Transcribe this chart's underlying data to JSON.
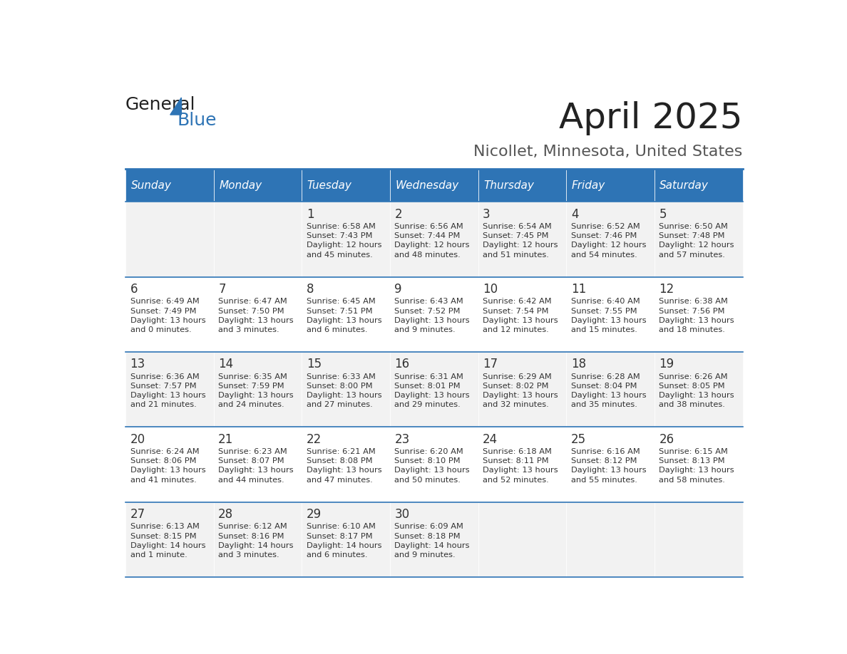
{
  "title": "April 2025",
  "subtitle": "Nicollet, Minnesota, United States",
  "header_bg": "#2e74b5",
  "header_text_color": "#ffffff",
  "cell_bg_odd": "#f2f2f2",
  "cell_bg_even": "#ffffff",
  "day_text_color": "#333333",
  "info_text_color": "#333333",
  "separator_color": "#2e74b5",
  "days_of_week": [
    "Sunday",
    "Monday",
    "Tuesday",
    "Wednesday",
    "Thursday",
    "Friday",
    "Saturday"
  ],
  "calendar": [
    [
      {
        "day": "",
        "info": ""
      },
      {
        "day": "",
        "info": ""
      },
      {
        "day": "1",
        "info": "Sunrise: 6:58 AM\nSunset: 7:43 PM\nDaylight: 12 hours\nand 45 minutes."
      },
      {
        "day": "2",
        "info": "Sunrise: 6:56 AM\nSunset: 7:44 PM\nDaylight: 12 hours\nand 48 minutes."
      },
      {
        "day": "3",
        "info": "Sunrise: 6:54 AM\nSunset: 7:45 PM\nDaylight: 12 hours\nand 51 minutes."
      },
      {
        "day": "4",
        "info": "Sunrise: 6:52 AM\nSunset: 7:46 PM\nDaylight: 12 hours\nand 54 minutes."
      },
      {
        "day": "5",
        "info": "Sunrise: 6:50 AM\nSunset: 7:48 PM\nDaylight: 12 hours\nand 57 minutes."
      }
    ],
    [
      {
        "day": "6",
        "info": "Sunrise: 6:49 AM\nSunset: 7:49 PM\nDaylight: 13 hours\nand 0 minutes."
      },
      {
        "day": "7",
        "info": "Sunrise: 6:47 AM\nSunset: 7:50 PM\nDaylight: 13 hours\nand 3 minutes."
      },
      {
        "day": "8",
        "info": "Sunrise: 6:45 AM\nSunset: 7:51 PM\nDaylight: 13 hours\nand 6 minutes."
      },
      {
        "day": "9",
        "info": "Sunrise: 6:43 AM\nSunset: 7:52 PM\nDaylight: 13 hours\nand 9 minutes."
      },
      {
        "day": "10",
        "info": "Sunrise: 6:42 AM\nSunset: 7:54 PM\nDaylight: 13 hours\nand 12 minutes."
      },
      {
        "day": "11",
        "info": "Sunrise: 6:40 AM\nSunset: 7:55 PM\nDaylight: 13 hours\nand 15 minutes."
      },
      {
        "day": "12",
        "info": "Sunrise: 6:38 AM\nSunset: 7:56 PM\nDaylight: 13 hours\nand 18 minutes."
      }
    ],
    [
      {
        "day": "13",
        "info": "Sunrise: 6:36 AM\nSunset: 7:57 PM\nDaylight: 13 hours\nand 21 minutes."
      },
      {
        "day": "14",
        "info": "Sunrise: 6:35 AM\nSunset: 7:59 PM\nDaylight: 13 hours\nand 24 minutes."
      },
      {
        "day": "15",
        "info": "Sunrise: 6:33 AM\nSunset: 8:00 PM\nDaylight: 13 hours\nand 27 minutes."
      },
      {
        "day": "16",
        "info": "Sunrise: 6:31 AM\nSunset: 8:01 PM\nDaylight: 13 hours\nand 29 minutes."
      },
      {
        "day": "17",
        "info": "Sunrise: 6:29 AM\nSunset: 8:02 PM\nDaylight: 13 hours\nand 32 minutes."
      },
      {
        "day": "18",
        "info": "Sunrise: 6:28 AM\nSunset: 8:04 PM\nDaylight: 13 hours\nand 35 minutes."
      },
      {
        "day": "19",
        "info": "Sunrise: 6:26 AM\nSunset: 8:05 PM\nDaylight: 13 hours\nand 38 minutes."
      }
    ],
    [
      {
        "day": "20",
        "info": "Sunrise: 6:24 AM\nSunset: 8:06 PM\nDaylight: 13 hours\nand 41 minutes."
      },
      {
        "day": "21",
        "info": "Sunrise: 6:23 AM\nSunset: 8:07 PM\nDaylight: 13 hours\nand 44 minutes."
      },
      {
        "day": "22",
        "info": "Sunrise: 6:21 AM\nSunset: 8:08 PM\nDaylight: 13 hours\nand 47 minutes."
      },
      {
        "day": "23",
        "info": "Sunrise: 6:20 AM\nSunset: 8:10 PM\nDaylight: 13 hours\nand 50 minutes."
      },
      {
        "day": "24",
        "info": "Sunrise: 6:18 AM\nSunset: 8:11 PM\nDaylight: 13 hours\nand 52 minutes."
      },
      {
        "day": "25",
        "info": "Sunrise: 6:16 AM\nSunset: 8:12 PM\nDaylight: 13 hours\nand 55 minutes."
      },
      {
        "day": "26",
        "info": "Sunrise: 6:15 AM\nSunset: 8:13 PM\nDaylight: 13 hours\nand 58 minutes."
      }
    ],
    [
      {
        "day": "27",
        "info": "Sunrise: 6:13 AM\nSunset: 8:15 PM\nDaylight: 14 hours\nand 1 minute."
      },
      {
        "day": "28",
        "info": "Sunrise: 6:12 AM\nSunset: 8:16 PM\nDaylight: 14 hours\nand 3 minutes."
      },
      {
        "day": "29",
        "info": "Sunrise: 6:10 AM\nSunset: 8:17 PM\nDaylight: 14 hours\nand 6 minutes."
      },
      {
        "day": "30",
        "info": "Sunrise: 6:09 AM\nSunset: 8:18 PM\nDaylight: 14 hours\nand 9 minutes."
      },
      {
        "day": "",
        "info": ""
      },
      {
        "day": "",
        "info": ""
      },
      {
        "day": "",
        "info": ""
      }
    ]
  ],
  "logo_text_general": "General",
  "logo_text_blue": "Blue",
  "logo_color_general": "#222222",
  "logo_color_blue": "#2e74b5"
}
